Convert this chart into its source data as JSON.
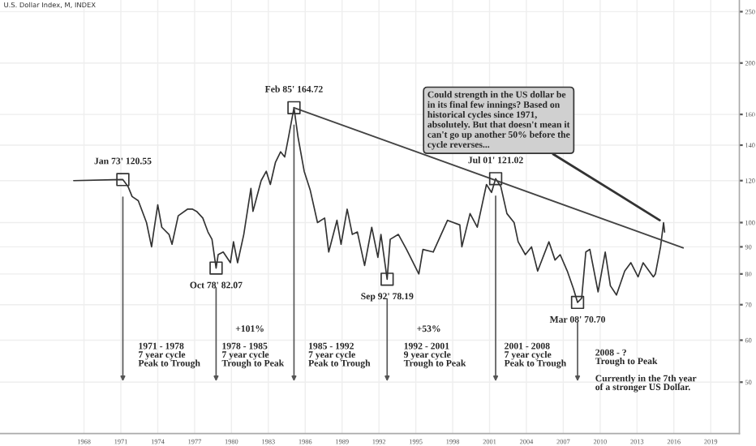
{
  "chart_data": {
    "type": "line",
    "title": "U.S. Dollar Index, M, INDEX",
    "x": [
      "1967-03",
      "1970-06",
      "1971-03",
      "1971-08",
      "1971-12",
      "1972-06",
      "1973-02",
      "1973-07",
      "1973-09",
      "1974-01",
      "1974-05",
      "1974-12",
      "1975-03",
      "1975-09",
      "1976-06",
      "1976-11",
      "1977-03",
      "1977-09",
      "1978-02",
      "1978-06",
      "1978-10",
      "1978-12",
      "1979-05",
      "1979-12",
      "1980-03",
      "1980-07",
      "1981-01",
      "1981-08",
      "1981-10",
      "1982-06",
      "1982-11",
      "1983-03",
      "1983-08",
      "1984-01",
      "1984-05",
      "1984-09",
      "1985-02",
      "1985-06",
      "1985-12",
      "1986-06",
      "1987-01",
      "1987-08",
      "1987-12",
      "1988-08",
      "1988-12",
      "1989-06",
      "1989-11",
      "1990-04",
      "1990-11",
      "1991-06",
      "1991-12",
      "1992-03",
      "1992-09",
      "1992-12",
      "1993-08",
      "1994-04",
      "1995-04",
      "1995-08",
      "1996-06",
      "1997-08",
      "1998-08",
      "1998-10",
      "1999-06",
      "2000-01",
      "2000-10",
      "2001-03",
      "2001-07",
      "2001-12",
      "2002-06",
      "2003-01",
      "2003-05",
      "2003-12",
      "2004-06",
      "2004-12",
      "2005-11",
      "2006-05",
      "2006-10",
      "2007-05",
      "2007-11",
      "2008-03",
      "2008-07",
      "2008-11",
      "2009-03",
      "2009-11",
      "2010-06",
      "2010-11",
      "2011-05",
      "2012-01",
      "2012-07",
      "2013-02",
      "2013-07",
      "2014-05",
      "2014-07",
      "2014-12",
      "2015-03",
      "2015-04"
    ],
    "series": [
      {
        "color": "#333333",
        "values": [
          120,
          120.5,
          120.55,
          117,
          112,
          110,
          100,
          90,
          96,
          108,
          98,
          95,
          91,
          103,
          106,
          106,
          105,
          102,
          96,
          93,
          82.07,
          87,
          88,
          84,
          92,
          84,
          95,
          116,
          105,
          120,
          125,
          118,
          130,
          136,
          133,
          146,
          164.72,
          145,
          125,
          115,
          100,
          102,
          88,
          101,
          91,
          106,
          95,
          96,
          83,
          98,
          86,
          95,
          78.19,
          93,
          95,
          89,
          80,
          89,
          88,
          101,
          99,
          90,
          104,
          98,
          118,
          114,
          121.02,
          117,
          104,
          100,
          92,
          87,
          90,
          81,
          92,
          85,
          87,
          81,
          75,
          70.7,
          72,
          88,
          89,
          74,
          88,
          76,
          73,
          81,
          84,
          79,
          84,
          79,
          80,
          90,
          100,
          96
        ]
      },
      {
        "type": "line",
        "color": "#444444",
        "x": [
          "1985-02",
          "2016-10"
        ],
        "values": [
          164.72,
          89.6
        ]
      }
    ],
    "marker": "none",
    "line_style": "solid",
    "log": "y",
    "ylim": [
      40,
      263
    ],
    "yticks": [
      50,
      60,
      70,
      80,
      90,
      100,
      120,
      140,
      160,
      200,
      250
    ],
    "xlim": [
      "1961-03",
      "2021-05"
    ],
    "xticks": [
      "1968",
      "1971",
      "1974",
      "1977",
      "1980",
      "1983",
      "1986",
      "1989",
      "1992",
      "1995",
      "1998",
      "2001",
      "2004",
      "2007",
      "2010",
      "2013",
      "2016",
      "2019"
    ],
    "grid": true,
    "legend": false,
    "annotations": [
      {
        "text": "Jan 73' 120.55",
        "x": "1971-03",
        "y": 120.55
      },
      {
        "text": "Oct 78' 82.07",
        "x": "1978-10",
        "y": 82.07
      },
      {
        "text": "Feb 85' 164.72",
        "x": "1985-02",
        "y": 164.72
      },
      {
        "text": "Sep 92' 78.19",
        "x": "1992-09",
        "y": 78.19
      },
      {
        "text": "Jul 01' 121.02",
        "x": "2001-07",
        "y": 121.02
      },
      {
        "text": "Mar 08' 70.70",
        "x": "2008-03",
        "y": 70.7
      },
      {
        "text": "Could strength in the US dollar be in its final few innings? Based on historical cycles since 1971, absolutely. But that doesn't mean it can't go up another 50% before the cycle reverses...",
        "x": "2015-03",
        "y": 100
      },
      "1971 - 1978\n7 year cycle\nPeak to Trough",
      "+101%",
      "1978 - 1985\n7 year cycle\nTrough to Peak",
      "1985 - 1992\n7 year cycle\nPeak to Trough",
      "+53%",
      "1992 - 2001\n9 year cycle\nTrough to Peak",
      "2001 - 2008\n7 year cycle\nPeak to Trough",
      "2008 - ?\nTrough to Peak\n\nCurrently in the 7th year\nof a stronger US Dollar."
    ]
  }
}
